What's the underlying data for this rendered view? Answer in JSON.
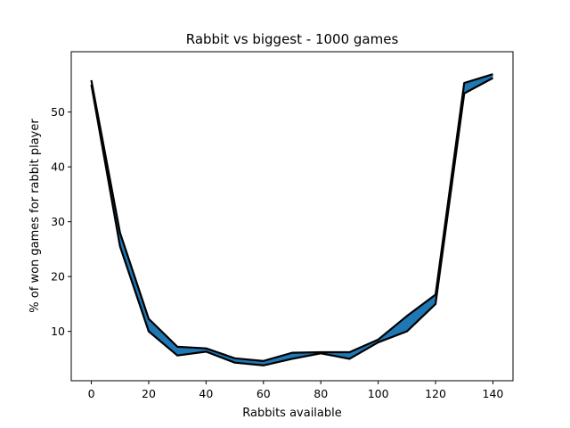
{
  "chart_data": {
    "type": "area",
    "title": "Rabbit vs biggest  - 1000 games",
    "xlabel": "Rabbits available",
    "ylabel": "% of won games for rabbit player",
    "xlim": [
      -7,
      147
    ],
    "ylim": [
      1,
      61
    ],
    "xticks": [
      0,
      20,
      40,
      60,
      80,
      100,
      120,
      140
    ],
    "yticks": [
      10,
      20,
      30,
      40,
      50
    ],
    "grid": false,
    "legend": "none",
    "fill_color": "#1f77b4",
    "line_color": "#000000",
    "x": [
      0,
      10,
      20,
      30,
      40,
      50,
      60,
      70,
      80,
      90,
      100,
      110,
      120,
      130,
      140
    ],
    "series": [
      {
        "values": [
          55.8,
          28.0,
          12.3,
          7.2,
          6.9,
          5.1,
          4.6,
          6.1,
          6.2,
          6.2,
          8.5,
          12.8,
          16.7,
          55.3,
          56.9
        ]
      },
      {
        "values": [
          55.0,
          25.5,
          10.0,
          5.6,
          6.3,
          4.3,
          3.8,
          5.0,
          6.0,
          5.0,
          8.0,
          10.0,
          15.0,
          53.4,
          56.2
        ]
      }
    ]
  }
}
